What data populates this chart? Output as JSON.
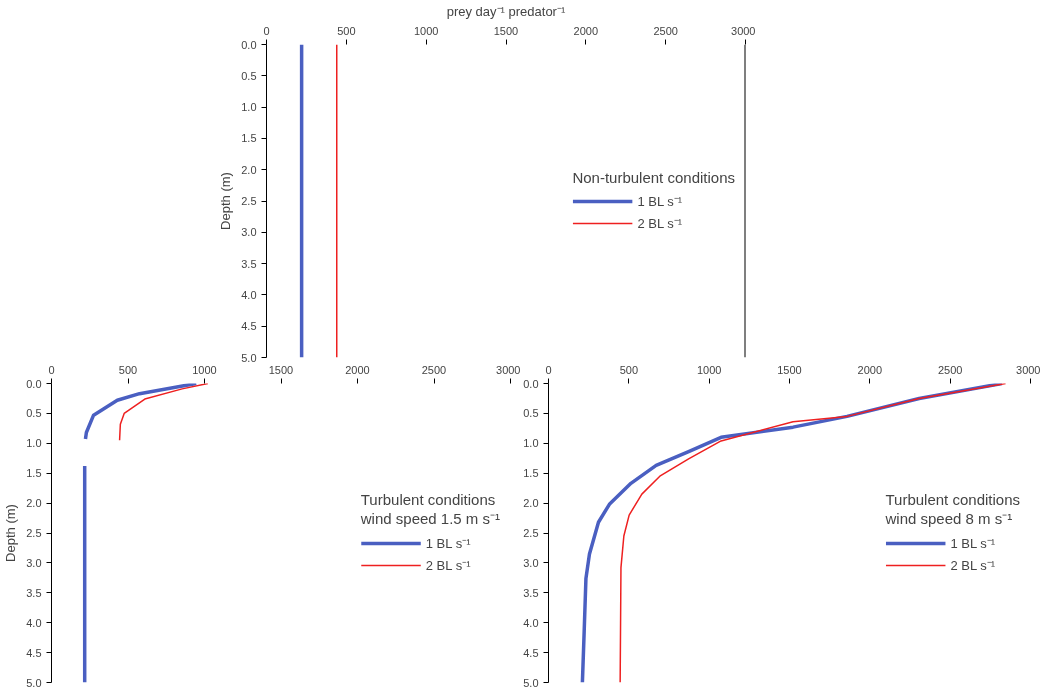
{
  "chart_data": [
    {
      "type": "line",
      "xlabel": "prey day⁻¹ predator⁻¹",
      "ylabel": "Depth (m)",
      "legend_title": "Non-turbulent conditions",
      "xlim": [
        0,
        3000
      ],
      "xticks": [
        0,
        500,
        1000,
        1500,
        2000,
        2500,
        3000
      ],
      "ylim": [
        5,
        0
      ],
      "yticks": [
        {
          "value": 0,
          "label": "0.0"
        },
        0.5,
        {
          "value": 1,
          "label": "1.0"
        },
        1.5,
        {
          "value": 2,
          "label": "2.0"
        },
        2.5,
        {
          "value": 3,
          "label": "3.0"
        },
        3.5,
        {
          "value": 4,
          "label": "4.0"
        },
        4.5,
        {
          "value": 5,
          "label": "5.0"
        }
      ],
      "grid": false,
      "legend": "right",
      "ref_lines": [
        {
          "axis": "x",
          "value": 3000,
          "color": "#000000"
        }
      ],
      "series": [
        {
          "name": "1 BL s⁻¹",
          "color": "#4a5fc1",
          "x": [
            220,
            220
          ],
          "values": [
            0,
            5
          ]
        },
        {
          "name": "2 BL s⁻¹",
          "color": "#ee2020",
          "x": [
            440,
            440
          ],
          "values": [
            0,
            5
          ]
        }
      ]
    },
    {
      "type": "line",
      "ylabel": "Depth (m)",
      "legend_title": "Turbulent conditions\nwind speed 1.5 m s⁻¹",
      "xlim": [
        0,
        3000
      ],
      "xticks": [
        0,
        500,
        1000,
        1500,
        2000,
        2500,
        3000
      ],
      "ylim": [
        5,
        0
      ],
      "yticks": [
        {
          "value": 0,
          "label": "0.0"
        },
        0.5,
        {
          "value": 1,
          "label": "1.0"
        },
        1.5,
        {
          "value": 2,
          "label": "2.0"
        },
        2.5,
        {
          "value": 3,
          "label": "3.0"
        },
        3.5,
        {
          "value": 4,
          "label": "4.0"
        },
        4.5,
        {
          "value": 5,
          "label": "5.0"
        }
      ],
      "grid": false,
      "legend": "right",
      "series": [
        {
          "name": "1 BL s⁻¹",
          "color": "#4a5fc1",
          "x": [
            946,
            575,
            430,
            275,
            228,
            222,
            null,
            217,
            217
          ],
          "values": [
            0,
            0.17,
            0.28,
            0.53,
            0.82,
            0.93,
            null,
            1.38,
            5.0
          ]
        },
        {
          "name": "2 BL s⁻¹",
          "color": "#ee2020",
          "x": [
            1022,
            854,
            610,
            475,
            450,
            445
          ],
          "values": [
            0,
            0.09,
            0.26,
            0.5,
            0.68,
            0.95
          ]
        }
      ]
    },
    {
      "type": "line",
      "legend_title": "Turbulent conditions\nwind speed 8 m s⁻¹",
      "xlim": [
        0,
        3000
      ],
      "xticks": [
        0,
        500,
        1000,
        1500,
        2000,
        2500,
        3000
      ],
      "ylim": [
        5,
        0
      ],
      "yticks": [
        {
          "value": 0,
          "label": "0.0"
        },
        0.5,
        {
          "value": 1,
          "label": "1.0"
        },
        1.5,
        {
          "value": 2,
          "label": "2.0"
        },
        2.5,
        {
          "value": 3,
          "label": "3.0"
        },
        3.5,
        {
          "value": 4,
          "label": "4.0"
        },
        4.5,
        {
          "value": 5,
          "label": "5.0"
        }
      ],
      "grid": false,
      "legend": "right",
      "series": [
        {
          "name": "1 BL s⁻¹",
          "color": "#4a5fc1",
          "x": [
            2822,
            2307,
            1858,
            1522,
            1074,
            872,
            670,
            513,
            379,
            311,
            255,
            233,
            222,
            211
          ],
          "values": [
            0,
            0.25,
            0.55,
            0.73,
            0.9,
            1.14,
            1.37,
            1.67,
            2.02,
            2.32,
            2.85,
            3.26,
            4.15,
            5.0
          ]
        },
        {
          "name": "2 BL s⁻¹",
          "color": "#ee2020",
          "x": [
            2845,
            2307,
            1858,
            1522,
            1074,
            872,
            693,
            581,
            502,
            469,
            451,
            446
          ],
          "values": [
            0,
            0.25,
            0.55,
            0.64,
            0.96,
            1.26,
            1.55,
            1.85,
            2.2,
            2.55,
            3.08,
            5.0
          ]
        }
      ]
    }
  ]
}
